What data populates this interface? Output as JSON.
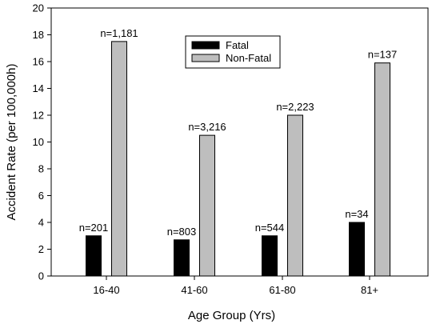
{
  "chart_data": {
    "type": "bar",
    "title": "",
    "xlabel": "Age Group (Yrs)",
    "ylabel": "Accident Rate (per 100,000h)",
    "ylim": [
      0,
      20
    ],
    "yticks": [
      "0",
      "2",
      "4",
      "6",
      "8",
      "10",
      "12",
      "14",
      "16",
      "18",
      "20"
    ],
    "categories": [
      "16-40",
      "41-60",
      "61-80",
      "81+"
    ],
    "grid": false,
    "legend_position": "top-center",
    "series": [
      {
        "name": "Fatal",
        "color": "#000000",
        "values": [
          3.0,
          2.7,
          3.0,
          4.0
        ],
        "labels": [
          "n=201",
          "n=803",
          "n=544",
          "n=34"
        ]
      },
      {
        "name": "Non-Fatal",
        "color": "#bebebe",
        "values": [
          17.5,
          10.5,
          12.0,
          15.9
        ],
        "labels": [
          "n=1,181",
          "n=3,216",
          "n=2,223",
          "n=137"
        ]
      }
    ]
  }
}
